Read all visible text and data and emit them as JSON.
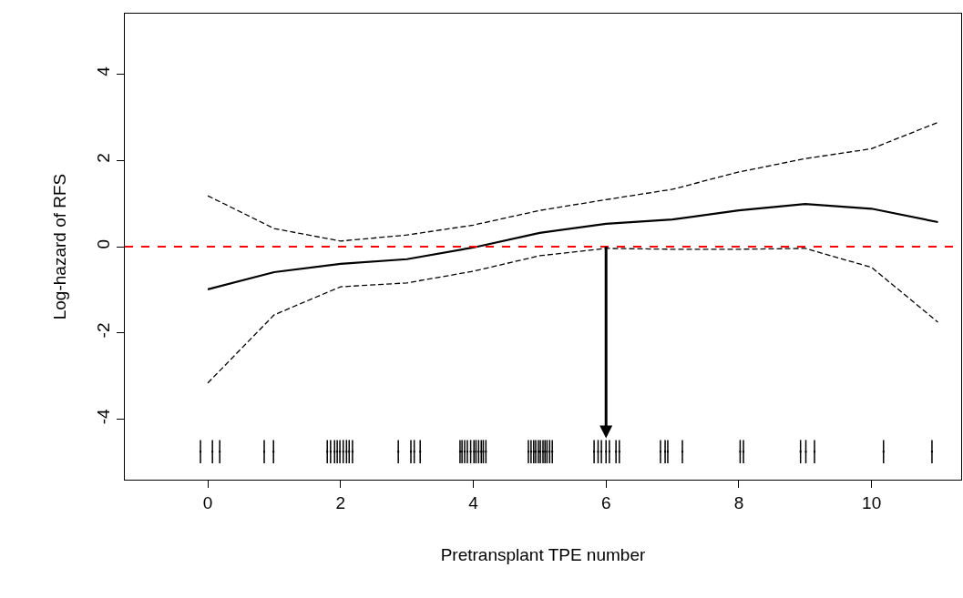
{
  "chart_data": {
    "type": "line",
    "xlabel": "Pretransplant TPE number",
    "ylabel": "Log-hazard of RFS",
    "x": [
      0,
      1,
      2,
      3,
      4,
      5,
      6,
      7,
      8,
      9,
      10,
      11
    ],
    "series": [
      {
        "color": "#000000",
        "line_style": "solid",
        "values": [
          -0.99,
          -0.59,
          -0.4,
          -0.29,
          -0.02,
          0.32,
          0.53,
          0.63,
          0.84,
          0.99,
          0.88,
          0.57
        ]
      },
      {
        "color": "#000000",
        "line_style": "dashed",
        "values": [
          1.18,
          0.42,
          0.13,
          0.27,
          0.5,
          0.84,
          1.09,
          1.33,
          1.73,
          2.04,
          2.27,
          2.88
        ]
      },
      {
        "color": "#000000",
        "line_style": "dashed",
        "values": [
          -3.16,
          -1.58,
          -0.93,
          -0.84,
          -0.57,
          -0.21,
          -0.04,
          -0.06,
          -0.06,
          -0.04,
          -0.48,
          -1.75
        ]
      },
      {
        "type": "scatter",
        "color": "#000000",
        "marker": "square",
        "errors": [
          0.27,
          0.27,
          0.27,
          0.27,
          0.27,
          0.27,
          0.27,
          0.27,
          0.27,
          0.27,
          0.27,
          0.27,
          0.27,
          0.27,
          0.27,
          0.27,
          0.27,
          0.27,
          0.27,
          0.27,
          0.27,
          0.27,
          0.27,
          0.27,
          0.27,
          0.27,
          0.27,
          0.27,
          0.27,
          0.27,
          0.27,
          0.27,
          0.27,
          0.27,
          0.27,
          0.27,
          0.27,
          0.27,
          0.27,
          0.27,
          0.27,
          0.27,
          0.27,
          0.27,
          0.27,
          0.27,
          0.27,
          0.27,
          0.27,
          0.27,
          0.27,
          0.27,
          0.27,
          0.27,
          0.27,
          0.27,
          0.27,
          0.27
        ],
        "x": [
          -0.11,
          0.07,
          0.18,
          0.85,
          0.99,
          1.8,
          1.85,
          1.91,
          1.95,
          1.99,
          2.04,
          2.09,
          2.13,
          2.18,
          2.87,
          3.06,
          3.11,
          3.2,
          3.8,
          3.83,
          3.87,
          3.91,
          3.96,
          4.01,
          4.04,
          4.08,
          4.12,
          4.15,
          4.19,
          4.83,
          4.87,
          4.91,
          4.94,
          4.98,
          5.01,
          5.05,
          5.08,
          5.11,
          5.15,
          5.19,
          5.82,
          5.88,
          5.93,
          6.0,
          6.05,
          6.15,
          6.2,
          6.82,
          6.89,
          6.93,
          7.15,
          8.02,
          8.07,
          8.93,
          9.01,
          9.14,
          10.18,
          10.91
        ],
        "values": [
          -4.75,
          -4.75,
          -4.75,
          -4.75,
          -4.75,
          -4.75,
          -4.75,
          -4.75,
          -4.75,
          -4.75,
          -4.75,
          -4.75,
          -4.75,
          -4.75,
          -4.75,
          -4.75,
          -4.75,
          -4.75,
          -4.75,
          -4.75,
          -4.75,
          -4.75,
          -4.75,
          -4.75,
          -4.75,
          -4.75,
          -4.75,
          -4.75,
          -4.75,
          -4.75,
          -4.75,
          -4.75,
          -4.75,
          -4.75,
          -4.75,
          -4.75,
          -4.75,
          -4.75,
          -4.75,
          -4.75,
          -4.75,
          -4.75,
          -4.75,
          -4.75,
          -4.75,
          -4.75,
          -4.75,
          -4.75,
          -4.75,
          -4.75,
          -4.75,
          -4.75,
          -4.75,
          -4.75,
          -4.75,
          -4.75,
          -4.75,
          -4.75
        ]
      }
    ],
    "ref_lines": [
      {
        "axis": "y",
        "value": 0,
        "color": "#ff0000",
        "line_style": "dashed"
      }
    ],
    "xlim": [
      -1.25,
      11.35
    ],
    "xticks": [
      0,
      2,
      4,
      6,
      8,
      10
    ],
    "ylim": [
      -5.4,
      5.4
    ],
    "yticks": [
      -4,
      -2,
      0,
      2,
      4
    ]
  }
}
